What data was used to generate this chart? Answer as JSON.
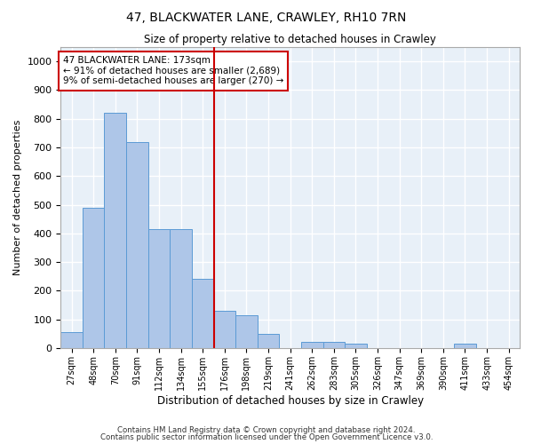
{
  "title1": "47, BLACKWATER LANE, CRAWLEY, RH10 7RN",
  "title2": "Size of property relative to detached houses in Crawley",
  "xlabel": "Distribution of detached houses by size in Crawley",
  "ylabel": "Number of detached properties",
  "bar_labels": [
    "27sqm",
    "48sqm",
    "70sqm",
    "91sqm",
    "112sqm",
    "134sqm",
    "155sqm",
    "176sqm",
    "198sqm",
    "219sqm",
    "241sqm",
    "262sqm",
    "283sqm",
    "305sqm",
    "326sqm",
    "347sqm",
    "369sqm",
    "390sqm",
    "411sqm",
    "433sqm",
    "454sqm"
  ],
  "bar_values": [
    55,
    490,
    820,
    720,
    415,
    415,
    240,
    130,
    115,
    50,
    0,
    20,
    20,
    15,
    0,
    0,
    0,
    0,
    15,
    0,
    0
  ],
  "bar_color": "#aec6e8",
  "bar_edgecolor": "#5b9bd5",
  "vline_index": 7,
  "annotation_text": "47 BLACKWATER LANE: 173sqm\n← 91% of detached houses are smaller (2,689)\n9% of semi-detached houses are larger (270) →",
  "annotation_box_color": "#ffffff",
  "annotation_box_edgecolor": "#cc0000",
  "vline_color": "#cc0000",
  "background_color": "#e8f0f8",
  "grid_color": "#ffffff",
  "ylim": [
    0,
    1050
  ],
  "yticks": [
    0,
    100,
    200,
    300,
    400,
    500,
    600,
    700,
    800,
    900,
    1000
  ],
  "footer1": "Contains HM Land Registry data © Crown copyright and database right 2024.",
  "footer2": "Contains public sector information licensed under the Open Government Licence v3.0."
}
